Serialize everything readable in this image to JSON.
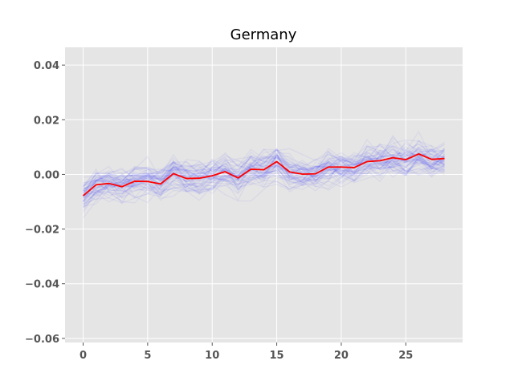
{
  "chart_data": {
    "type": "line",
    "title": "Germany",
    "xlabel": "",
    "ylabel": "",
    "xlim": [
      -1.4,
      29.4
    ],
    "ylim": [
      -0.0615,
      0.0465
    ],
    "x_ticks": [
      0,
      5,
      10,
      15,
      20,
      25
    ],
    "x_tick_labels": [
      "0",
      "5",
      "10",
      "15",
      "20",
      "25"
    ],
    "y_ticks": [
      -0.06,
      -0.04,
      -0.02,
      0.0,
      0.02,
      0.04
    ],
    "y_tick_labels": [
      "−0.06",
      "−0.04",
      "−0.02",
      "0.00",
      "0.02",
      "0.04"
    ],
    "grid": true,
    "background_color": "#e5e5e5",
    "grid_color": "#ffffff",
    "series": [
      {
        "color": "#ff0000",
        "x": [
          0,
          1,
          2,
          3,
          4,
          5,
          6,
          7,
          8,
          9,
          10,
          11,
          12,
          13,
          14,
          15,
          16,
          17,
          18,
          19,
          20,
          21,
          22,
          23,
          24,
          25,
          26,
          27,
          28
        ],
        "values": [
          -0.0078,
          -0.0038,
          -0.0033,
          -0.0045,
          -0.0025,
          -0.0026,
          -0.0035,
          0.0003,
          -0.0015,
          -0.0014,
          -0.0005,
          0.001,
          -0.0013,
          0.0019,
          0.0017,
          0.0047,
          0.0009,
          0.0001,
          0.0002,
          0.0027,
          0.0027,
          0.0025,
          0.0047,
          0.005,
          0.0061,
          0.0054,
          0.0075,
          0.0055,
          0.0058
        ]
      }
    ],
    "background_traces": {
      "color": "#0000ff",
      "opacity": 0.05,
      "count": 60,
      "x_range": [
        0,
        28
      ],
      "y_range_approx": [
        -0.058,
        0.042
      ]
    }
  }
}
